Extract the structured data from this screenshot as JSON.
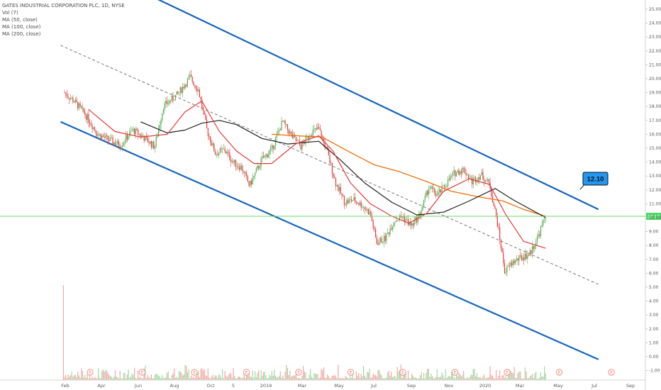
{
  "legend": {
    "title": "GATES INDUSTRIAL CORPORATION PLC, 1D, NYSE",
    "vol": "Vol (7)",
    "ma50": "MA (50, close)",
    "ma100": "MA (100, close)",
    "ma200": "MA (200, close)"
  },
  "callout": {
    "text": "12.10"
  },
  "price_tag": {
    "text": "10.10"
  },
  "colors": {
    "channel": "#1565c0",
    "midline": "#777777",
    "ma50": "#e53935",
    "ma100": "#212121",
    "ma200": "#ef6c00",
    "up": "#4caf50",
    "down": "#e53935",
    "price_line": "#66dd66",
    "callout_fill": "#2196f3",
    "earnings": "#f07a6a"
  },
  "chart_data": {
    "type": "candlestick",
    "y_ticks": [
      "25.00",
      "24.00",
      "23.00",
      "22.00",
      "21.00",
      "20.00",
      "19.00",
      "18.00",
      "17.00",
      "16.00",
      "15.00",
      "14.00",
      "13.00",
      "12.00",
      "11.00",
      "10.00",
      "9.00",
      "8.00",
      "7.00",
      "6.00",
      "5.00",
      "4.00",
      "3.00",
      "2.00",
      "1.00",
      "0.00",
      "-1.00"
    ],
    "x_ticks": [
      "Feb",
      "Apr",
      "Jun",
      "Aug",
      "Oct",
      "5",
      "2019",
      "Mar",
      "May",
      "Jul",
      "Sep",
      "Nov",
      "2020",
      "Mar",
      "May",
      "Jul",
      "Sep"
    ],
    "earnings_marker": "E",
    "earnings_count": 11,
    "last_price": 10.1,
    "price_path": [
      [
        "2018-02-01",
        19.0
      ],
      [
        "2018-02-20",
        18.3
      ],
      [
        "2018-03-10",
        17.4
      ],
      [
        "2018-04-01",
        16.0
      ],
      [
        "2018-04-20",
        15.6
      ],
      [
        "2018-05-10",
        15.2
      ],
      [
        "2018-06-01",
        16.3
      ],
      [
        "2018-06-20",
        15.8
      ],
      [
        "2018-07-10",
        15.1
      ],
      [
        "2018-07-25",
        18.0
      ],
      [
        "2018-08-20",
        18.9
      ],
      [
        "2018-09-10",
        20.1
      ],
      [
        "2018-09-25",
        19.2
      ],
      [
        "2018-10-10",
        16.3
      ],
      [
        "2018-10-25",
        14.6
      ],
      [
        "2018-11-10",
        14.9
      ],
      [
        "2018-11-25",
        14.0
      ],
      [
        "2018-12-10",
        13.6
      ],
      [
        "2018-12-24",
        12.3
      ],
      [
        "2019-01-15",
        14.2
      ],
      [
        "2019-02-01",
        14.9
      ],
      [
        "2019-02-20",
        16.9
      ],
      [
        "2019-03-10",
        15.8
      ],
      [
        "2019-03-25",
        15.1
      ],
      [
        "2019-04-10",
        16.1
      ],
      [
        "2019-04-25",
        16.4
      ],
      [
        "2019-05-10",
        14.7
      ],
      [
        "2019-05-25",
        12.5
      ],
      [
        "2019-06-10",
        11.1
      ],
      [
        "2019-06-25",
        11.3
      ],
      [
        "2019-07-10",
        10.9
      ],
      [
        "2019-07-25",
        10.3
      ],
      [
        "2019-08-05",
        8.2
      ],
      [
        "2019-08-20",
        8.5
      ],
      [
        "2019-09-05",
        9.8
      ],
      [
        "2019-09-20",
        10.1
      ],
      [
        "2019-10-05",
        9.4
      ],
      [
        "2019-10-20",
        10.2
      ],
      [
        "2019-11-05",
        12.2
      ],
      [
        "2019-11-20",
        11.6
      ],
      [
        "2019-12-05",
        12.4
      ],
      [
        "2019-12-20",
        13.2
      ],
      [
        "2020-01-05",
        13.5
      ],
      [
        "2020-01-20",
        12.6
      ],
      [
        "2020-02-05",
        13.1
      ],
      [
        "2020-02-20",
        12.4
      ],
      [
        "2020-03-05",
        9.6
      ],
      [
        "2020-03-18",
        6.1
      ],
      [
        "2020-04-01",
        6.8
      ],
      [
        "2020-04-15",
        7.1
      ],
      [
        "2020-05-01",
        7.4
      ],
      [
        "2020-05-15",
        8.6
      ],
      [
        "2020-05-29",
        10.1
      ]
    ],
    "ma50_path": [
      [
        "2018-03-15",
        17.8
      ],
      [
        "2018-05-01",
        16.2
      ],
      [
        "2018-06-15",
        15.8
      ],
      [
        "2018-08-01",
        16.0
      ],
      [
        "2018-09-01",
        17.6
      ],
      [
        "2018-10-01",
        18.4
      ],
      [
        "2018-11-01",
        16.2
      ],
      [
        "2018-12-01",
        14.8
      ],
      [
        "2019-01-01",
        13.9
      ],
      [
        "2019-02-01",
        13.9
      ],
      [
        "2019-03-15",
        15.3
      ],
      [
        "2019-04-25",
        15.9
      ],
      [
        "2019-05-20",
        14.8
      ],
      [
        "2019-06-20",
        12.5
      ],
      [
        "2019-07-25",
        11.0
      ],
      [
        "2019-09-01",
        10.1
      ],
      [
        "2019-10-01",
        9.6
      ],
      [
        "2019-11-01",
        10.3
      ],
      [
        "2019-12-01",
        11.9
      ],
      [
        "2020-01-15",
        12.8
      ],
      [
        "2020-02-20",
        12.4
      ],
      [
        "2020-03-20",
        10.2
      ],
      [
        "2020-04-20",
        8.3
      ],
      [
        "2020-05-29",
        7.8
      ]
    ],
    "ma100_path": [
      [
        "2018-06-15",
        16.9
      ],
      [
        "2018-08-01",
        16.1
      ],
      [
        "2018-09-01",
        16.3
      ],
      [
        "2018-10-01",
        16.8
      ],
      [
        "2018-11-01",
        17.0
      ],
      [
        "2018-12-01",
        16.7
      ],
      [
        "2019-01-15",
        15.7
      ],
      [
        "2019-03-01",
        15.3
      ],
      [
        "2019-04-25",
        15.5
      ],
      [
        "2019-06-01",
        14.2
      ],
      [
        "2019-07-15",
        12.5
      ],
      [
        "2019-09-01",
        11.1
      ],
      [
        "2019-10-15",
        10.2
      ],
      [
        "2019-12-01",
        10.4
      ],
      [
        "2020-01-15",
        11.2
      ],
      [
        "2020-03-01",
        12.1
      ],
      [
        "2020-04-01",
        11.3
      ],
      [
        "2020-05-29",
        10.0
      ]
    ],
    "ma200_path": [
      [
        "2019-02-01",
        16.0
      ],
      [
        "2019-03-15",
        15.9
      ],
      [
        "2019-05-01",
        15.8
      ],
      [
        "2019-06-15",
        14.8
      ],
      [
        "2019-08-01",
        13.8
      ],
      [
        "2019-09-15",
        13.3
      ],
      [
        "2019-11-01",
        12.6
      ],
      [
        "2019-12-15",
        11.9
      ],
      [
        "2020-02-01",
        11.5
      ],
      [
        "2020-03-15",
        11.2
      ],
      [
        "2020-04-20",
        10.6
      ],
      [
        "2020-05-29",
        10.1
      ]
    ],
    "channel_upper": [
      [
        "2018-03-20",
        28.0
      ],
      [
        "2020-08-30",
        10.6
      ]
    ],
    "channel_lower": [
      [
        "2018-01-25",
        16.9
      ],
      [
        "2020-08-30",
        -0.2
      ]
    ],
    "channel_mid": [
      [
        "2018-01-25",
        22.4
      ],
      [
        "2020-08-30",
        5.2
      ]
    ],
    "volume_spike_date": "2018-01-30"
  }
}
